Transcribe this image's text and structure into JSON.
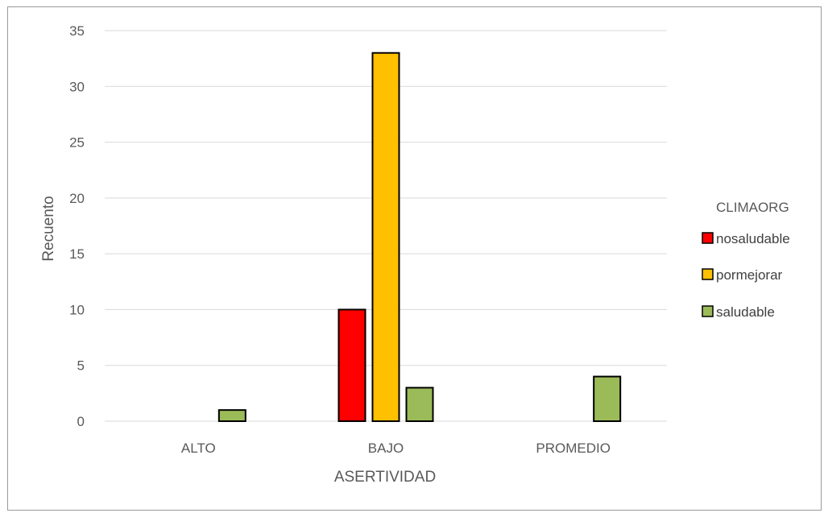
{
  "chart_data": {
    "type": "bar",
    "categories": [
      "ALTO",
      "BAJO",
      "PROMEDIO"
    ],
    "series": [
      {
        "name": "nosaludable",
        "color": "#ff0000",
        "values": [
          0,
          10,
          0
        ]
      },
      {
        "name": "pormejorar",
        "color": "#ffc000",
        "values": [
          0,
          33,
          0
        ]
      },
      {
        "name": "saludable",
        "color": "#9bbb59",
        "values": [
          1,
          3,
          4
        ]
      }
    ],
    "xlabel": "ASERTIVIDAD",
    "ylabel": "Recuento",
    "ylim": [
      0,
      35
    ],
    "yticks": [
      "0",
      "5",
      "10",
      "15",
      "20",
      "25",
      "30",
      "35"
    ],
    "grid": true,
    "legend": {
      "title": "CLIMAORG",
      "position": "right"
    }
  }
}
